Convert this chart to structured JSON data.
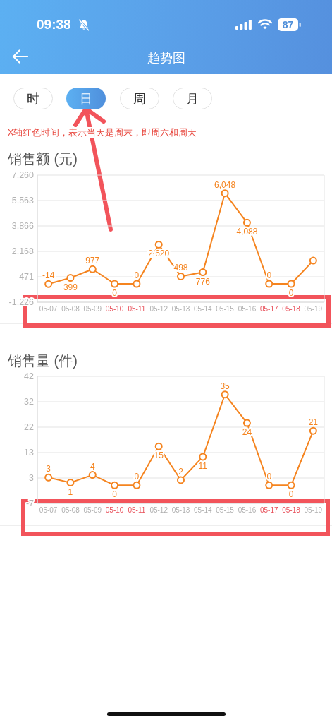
{
  "chart_data": [
    {
      "type": "line",
      "title": "销售额 (元)",
      "annotations": [
        "09:38",
        "87",
        "趋势图",
        "时",
        "日",
        "周",
        "月",
        "X轴红色时间，表示当天是周末，即周六和周天"
      ],
      "categories": [
        "05-07",
        "05-08",
        "05-09",
        "05-10",
        "05-11",
        "05-12",
        "05-13",
        "05-14",
        "05-15",
        "05-16",
        "05-17",
        "05-18",
        "05-19"
      ],
      "values": [
        -14,
        399,
        977,
        0,
        0,
        2620,
        498,
        776,
        6048,
        4088,
        0,
        0,
        1550
      ],
      "value_labels": [
        "-14",
        "399",
        "977",
        "0",
        "0",
        "2,620",
        "498",
        "776",
        "6,048",
        "4,088",
        "0",
        "0",
        null
      ],
      "color": "#f5841f",
      "ylim": [
        -1226,
        7260
      ],
      "yticks": [
        {
          "value": -1226,
          "label": "-1,226"
        },
        {
          "value": 471.2,
          "label": "471"
        },
        {
          "value": 2168.4,
          "label": "2,168"
        },
        {
          "value": 3865.6,
          "label": "3,866"
        },
        {
          "value": 5562.8,
          "label": "5,563"
        },
        {
          "value": 7260,
          "label": "7,260"
        }
      ],
      "grid": "y",
      "marker": "circle",
      "line_style": "solid"
    },
    {
      "type": "line",
      "title": "销售量 (件)",
      "categories": [
        "05-07",
        "05-08",
        "05-09",
        "05-10",
        "05-11",
        "05-12",
        "05-13",
        "05-14",
        "05-15",
        "05-16",
        "05-17",
        "05-18",
        "05-19"
      ],
      "values": [
        3,
        1,
        4,
        0,
        0,
        15,
        2,
        11,
        35,
        24,
        0,
        0,
        21
      ],
      "data_labels": true,
      "color": "#f5841f",
      "ylim": [
        -7,
        42
      ],
      "yticks": [
        -7,
        {
          "value": 2.8,
          "label": "3"
        },
        {
          "value": 12.6,
          "label": "13"
        },
        {
          "value": 22.4,
          "label": "22"
        },
        {
          "value": 32.2,
          "label": "32"
        },
        42
      ],
      "grid": "y",
      "marker": "circle",
      "line_style": "solid"
    }
  ]
}
